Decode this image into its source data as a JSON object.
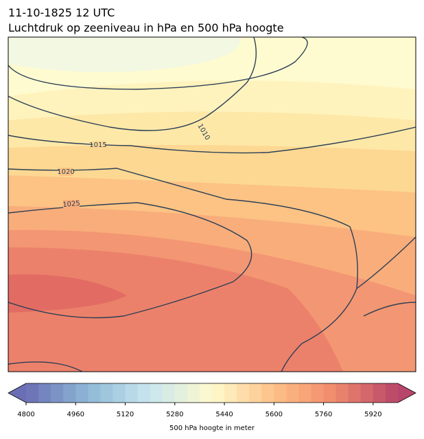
{
  "header": {
    "title": "11-10-1825 12 UTC",
    "subtitle": "Luchtdruk op zeeniveau in hPa en 500 hPa hoogte"
  },
  "isobar_labels": [
    1015,
    1020,
    1025,
    1010
  ],
  "colorbar": {
    "lim": [
      4800,
      6000
    ],
    "step": 40,
    "ticks": [
      4800,
      4960,
      5120,
      5280,
      5440,
      5600,
      5760,
      5920
    ],
    "label": "500 hPa hoogte in meter"
  }
}
